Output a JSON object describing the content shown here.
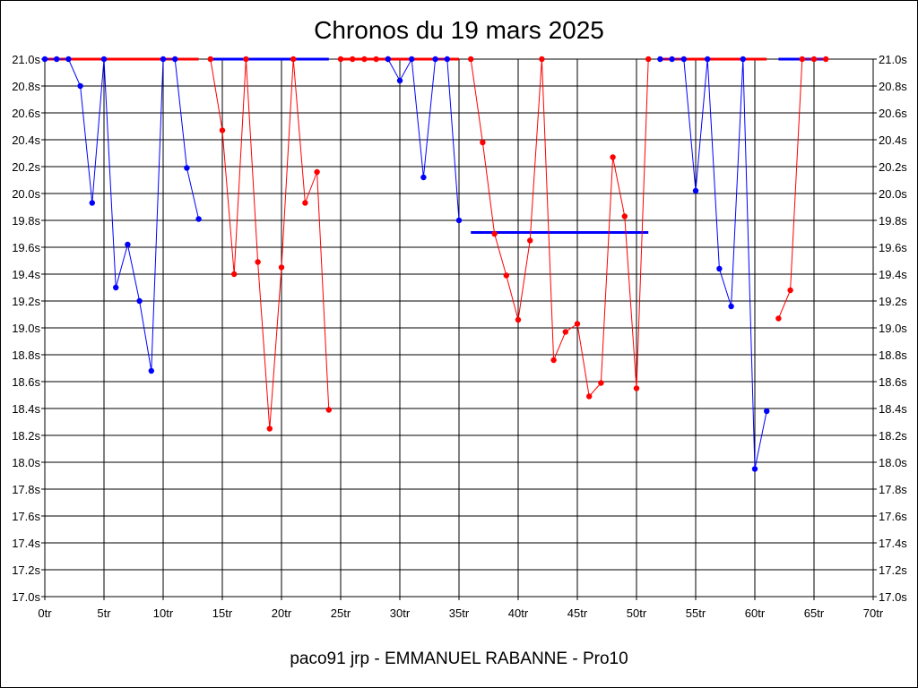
{
  "chart_data": {
    "type": "line",
    "title": "Chronos du 19 mars 2025",
    "footer": "paco91 jrp - EMMANUEL RABANNE - Pro10",
    "xlim": [
      0,
      70
    ],
    "ylim": [
      17.0,
      21.0
    ],
    "x_ticks": [
      0,
      5,
      10,
      15,
      20,
      25,
      30,
      35,
      40,
      45,
      50,
      55,
      60,
      65,
      70
    ],
    "x_tick_labels": [
      "0tr",
      "5tr",
      "10tr",
      "15tr",
      "20tr",
      "25tr",
      "30tr",
      "35tr",
      "40tr",
      "45tr",
      "50tr",
      "55tr",
      "60tr",
      "65tr",
      "70tr"
    ],
    "y_ticks": [
      17.0,
      17.2,
      17.4,
      17.6,
      17.8,
      18.0,
      18.2,
      18.4,
      18.6,
      18.8,
      19.0,
      19.2,
      19.4,
      19.6,
      19.8,
      20.0,
      20.2,
      20.4,
      20.6,
      20.8,
      21.0
    ],
    "y_tick_labels": [
      "17.0s",
      "17.2s",
      "17.4s",
      "17.6s",
      "17.8s",
      "18.0s",
      "18.2s",
      "18.4s",
      "18.6s",
      "18.8s",
      "19.0s",
      "19.2s",
      "19.4s",
      "19.6s",
      "19.8s",
      "20.0s",
      "20.2s",
      "20.4s",
      "20.6s",
      "20.8s",
      "21.0s"
    ],
    "grid": true,
    "colors": {
      "blue": "#0000ff",
      "red": "#ff0000"
    },
    "series": [
      {
        "color": "blue",
        "points": [
          [
            0,
            21.0
          ],
          [
            1,
            21.0
          ],
          [
            2,
            21.0
          ],
          [
            3,
            20.8
          ],
          [
            4,
            19.93
          ],
          [
            5,
            21.0
          ],
          [
            6,
            19.3
          ],
          [
            7,
            19.62
          ],
          [
            8,
            19.2
          ],
          [
            9,
            18.68
          ],
          [
            10,
            21.0
          ],
          [
            11,
            21.0
          ],
          [
            12,
            20.19
          ],
          [
            13,
            19.81
          ]
        ]
      },
      {
        "color": "red",
        "points": [
          [
            14,
            21.0
          ],
          [
            15,
            20.47
          ],
          [
            16,
            19.4
          ],
          [
            17,
            21.0
          ],
          [
            18,
            19.49
          ],
          [
            19,
            18.25
          ],
          [
            20,
            19.45
          ],
          [
            21,
            21.0
          ],
          [
            22,
            19.93
          ],
          [
            23,
            20.16
          ],
          [
            24,
            18.39
          ]
        ]
      },
      {
        "color": "red",
        "points": [
          [
            25,
            21.0
          ],
          [
            26,
            21.0
          ],
          [
            27,
            21.0
          ],
          [
            28,
            21.0
          ],
          [
            29,
            21.0
          ]
        ]
      },
      {
        "color": "blue",
        "points": [
          [
            29,
            21.0
          ],
          [
            30,
            20.84
          ],
          [
            31,
            21.0
          ],
          [
            32,
            20.12
          ],
          [
            33,
            21.0
          ],
          [
            34,
            21.0
          ],
          [
            35,
            19.8
          ]
        ]
      },
      {
        "color": "red",
        "points": [
          [
            36,
            21.0
          ],
          [
            37,
            20.38
          ],
          [
            38,
            19.7
          ],
          [
            39,
            19.39
          ],
          [
            40,
            19.06
          ],
          [
            41,
            19.65
          ],
          [
            42,
            21.0
          ],
          [
            43,
            18.76
          ],
          [
            44,
            18.97
          ],
          [
            45,
            19.03
          ],
          [
            46,
            18.49
          ],
          [
            47,
            18.59
          ],
          [
            48,
            20.27
          ],
          [
            49,
            19.83
          ],
          [
            50,
            18.55
          ],
          [
            51,
            21.0
          ]
        ]
      },
      {
        "color": "blue",
        "points": [
          [
            52,
            21.0
          ],
          [
            53,
            21.0
          ],
          [
            54,
            21.0
          ],
          [
            55,
            20.02
          ],
          [
            56,
            21.0
          ],
          [
            57,
            19.44
          ],
          [
            58,
            19.16
          ],
          [
            59,
            21.0
          ],
          [
            60,
            17.95
          ],
          [
            61,
            18.38
          ]
        ]
      },
      {
        "color": "red",
        "points": [
          [
            62,
            19.07
          ],
          [
            63,
            19.28
          ],
          [
            64,
            21.0
          ],
          [
            65,
            21.0
          ],
          [
            66,
            21.0
          ]
        ]
      }
    ],
    "average_lines": [
      {
        "color": "red",
        "x": [
          0,
          13
        ],
        "y": 21.0
      },
      {
        "color": "blue",
        "x": [
          14,
          24
        ],
        "y": 21.0
      },
      {
        "color": "red",
        "x": [
          25,
          35
        ],
        "y": 21.0
      },
      {
        "color": "blue",
        "x": [
          36,
          51
        ],
        "y": 19.71
      },
      {
        "color": "red",
        "x": [
          52,
          61
        ],
        "y": 21.0
      },
      {
        "color": "blue",
        "x": [
          62,
          66
        ],
        "y": 21.0
      }
    ]
  }
}
